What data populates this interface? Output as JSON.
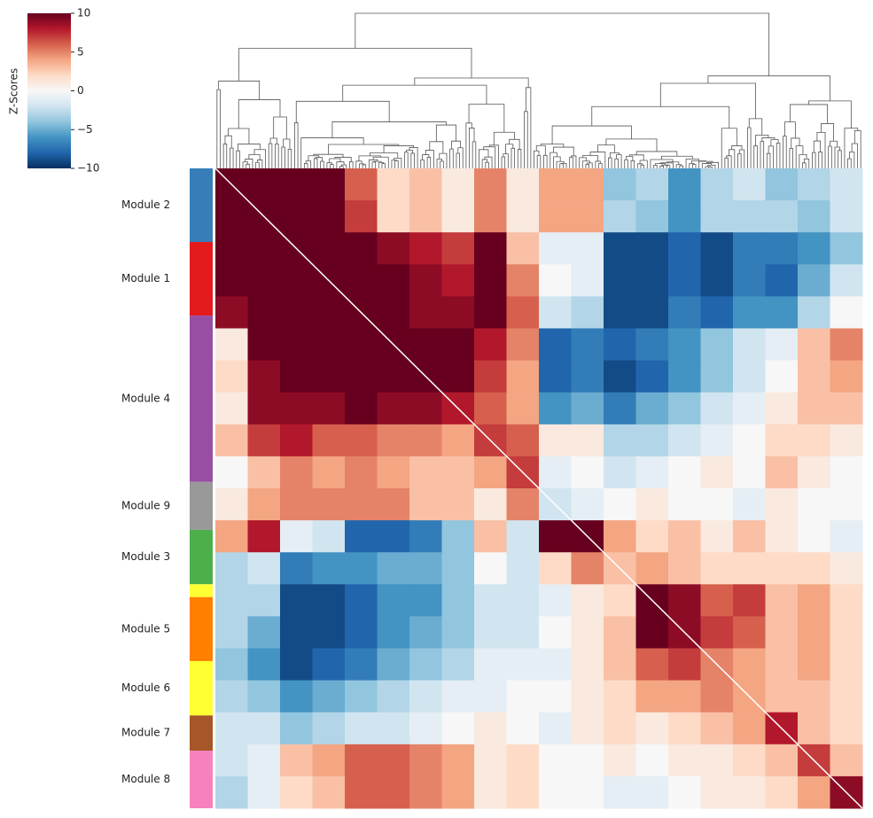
{
  "chart_data": {
    "type": "heatmap",
    "colormap": "RdBu_r",
    "colorbar": {
      "label": "Z-Scores",
      "lim": [
        -10,
        10
      ],
      "ticks": [
        10,
        5,
        0,
        {
          "value": -5,
          "label": "−5"
        },
        {
          "value": -10,
          "label": "−10"
        }
      ]
    },
    "row_groups": {
      "categories": [
        "Module 2",
        "Module 1",
        "Module 4",
        "Module 9",
        "Module 3",
        null,
        "Module 5",
        "Module 6",
        "Module 7",
        "Module 8"
      ],
      "colors": [
        "#377eb8",
        "#e41a1c",
        "#984ea3",
        "#999999",
        "#4daf4a",
        "#ffff33",
        "#ff7f00",
        "#ffff33",
        "#a65628",
        "#f781bf"
      ],
      "sizes": [
        23,
        23,
        52,
        15,
        17,
        4,
        20,
        17,
        11,
        18
      ]
    },
    "matrix": [
      [
        10,
        10,
        10,
        10,
        6,
        2,
        3,
        1,
        5,
        1,
        4,
        4,
        -4,
        -3,
        -6,
        -3,
        -2,
        -4,
        -3,
        -2
      ],
      [
        10,
        10,
        10,
        10,
        7,
        2,
        3,
        1,
        5,
        1,
        4,
        4,
        -3,
        -4,
        -6,
        -3,
        -3,
        -3,
        -4,
        -2
      ],
      [
        10,
        10,
        10,
        10,
        10,
        9,
        8,
        7,
        10,
        3,
        -1,
        -1,
        -9,
        -9,
        -8,
        -9,
        -7,
        -7,
        -6,
        -4
      ],
      [
        10,
        10,
        10,
        10,
        10,
        10,
        9,
        8,
        10,
        5,
        0,
        -1,
        -9,
        -9,
        -8,
        -9,
        -7,
        -8,
        -5,
        -2
      ],
      [
        9,
        10,
        10,
        10,
        10,
        10,
        9,
        9,
        10,
        6,
        -2,
        -3,
        -9,
        -9,
        -7,
        -8,
        -6,
        -6,
        -3,
        0
      ],
      [
        1,
        10,
        10,
        10,
        10,
        10,
        10,
        10,
        8,
        5,
        -8,
        -7,
        -8,
        -7,
        -6,
        -4,
        -2,
        -1,
        3,
        5
      ],
      [
        2,
        9,
        10,
        10,
        10,
        10,
        10,
        10,
        7,
        4,
        -8,
        -7,
        -9,
        -8,
        -6,
        -4,
        -2,
        0,
        3,
        4
      ],
      [
        1,
        9,
        9,
        9,
        10,
        9,
        9,
        8,
        6,
        4,
        -6,
        -5,
        -7,
        -5,
        -4,
        -2,
        -1,
        1,
        3,
        3
      ],
      [
        3,
        7,
        8,
        6,
        6,
        5,
        5,
        4,
        7,
        6,
        1,
        1,
        -3,
        -3,
        -2,
        -1,
        0,
        2,
        2,
        1
      ],
      [
        0,
        3,
        5,
        4,
        5,
        4,
        3,
        3,
        4,
        7,
        -1,
        0,
        -2,
        -1,
        0,
        1,
        0,
        3,
        1,
        0
      ],
      [
        1,
        4,
        5,
        5,
        5,
        5,
        3,
        3,
        1,
        5,
        -2,
        -1,
        0,
        1,
        0,
        0,
        -1,
        1,
        0,
        0
      ],
      [
        4,
        8,
        -1,
        -2,
        -8,
        -8,
        -7,
        -4,
        3,
        -2,
        10,
        10,
        4,
        2,
        3,
        1,
        3,
        1,
        0,
        -1
      ],
      [
        -3,
        -2,
        -7,
        -6,
        -6,
        -5,
        -5,
        -4,
        0,
        -2,
        2,
        5,
        3,
        4,
        3,
        2,
        2,
        2,
        2,
        1
      ],
      [
        -3,
        -3,
        -9,
        -9,
        -8,
        -6,
        -6,
        -4,
        -2,
        -2,
        -1,
        1,
        2,
        10,
        9,
        6,
        7,
        3,
        4,
        2
      ],
      [
        -3,
        -5,
        -9,
        -9,
        -8,
        -6,
        -5,
        -4,
        -2,
        -2,
        0,
        1,
        3,
        10,
        9,
        7,
        6,
        3,
        4,
        2
      ],
      [
        -4,
        -6,
        -9,
        -8,
        -7,
        -5,
        -4,
        -3,
        -1,
        -1,
        -1,
        1,
        3,
        6,
        7,
        5,
        4,
        3,
        4,
        2
      ],
      [
        -3,
        -4,
        -6,
        -5,
        -4,
        -3,
        -2,
        -1,
        -1,
        0,
        0,
        1,
        2,
        4,
        4,
        5,
        4,
        3,
        3,
        2
      ],
      [
        -2,
        -2,
        -4,
        -3,
        -2,
        -2,
        -1,
        0,
        1,
        0,
        -1,
        1,
        2,
        1,
        2,
        3,
        4,
        8,
        3,
        2
      ],
      [
        -2,
        -1,
        3,
        4,
        6,
        6,
        5,
        4,
        1,
        2,
        0,
        0,
        1,
        0,
        1,
        1,
        2,
        3,
        7,
        3
      ],
      [
        -3,
        -1,
        2,
        3,
        6,
        6,
        5,
        4,
        1,
        2,
        0,
        0,
        -1,
        -1,
        0,
        1,
        1,
        2,
        4,
        9
      ]
    ]
  }
}
